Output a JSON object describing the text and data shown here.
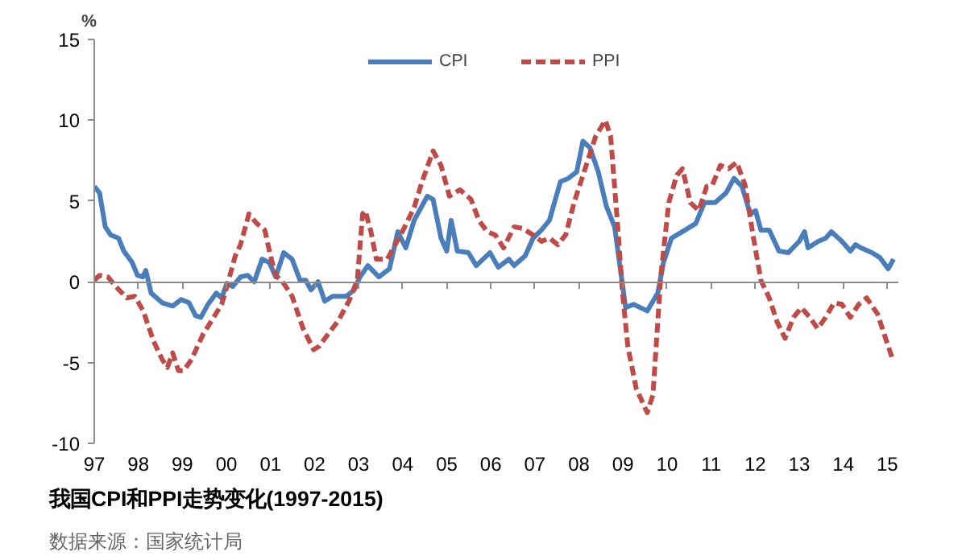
{
  "chart_data": {
    "type": "line",
    "title": "我国CPI和PPI走势变化(1997-2015)",
    "ylabel": "%",
    "annotations": [
      "数据来源：国家统计局"
    ],
    "xlim": [
      1997,
      2015.25
    ],
    "xticks": [
      {
        "value": 1997,
        "label": "97"
      },
      {
        "value": 1998,
        "label": "98"
      },
      {
        "value": 1999,
        "label": "99"
      },
      {
        "value": 2000,
        "label": "00"
      },
      {
        "value": 2001,
        "label": "01"
      },
      {
        "value": 2002,
        "label": "02"
      },
      {
        "value": 2003,
        "label": "03"
      },
      {
        "value": 2004,
        "label": "04"
      },
      {
        "value": 2005,
        "label": "05"
      },
      {
        "value": 2006,
        "label": "06"
      },
      {
        "value": 2007,
        "label": "07"
      },
      {
        "value": 2008,
        "label": "08"
      },
      {
        "value": 2009,
        "label": "09"
      },
      {
        "value": 2010,
        "label": "10"
      },
      {
        "value": 2011,
        "label": "11"
      },
      {
        "value": 2012,
        "label": "12"
      },
      {
        "value": 2013,
        "label": "13"
      },
      {
        "value": 2014,
        "label": "14"
      },
      {
        "value": 2015,
        "label": "15"
      }
    ],
    "ylim": [
      -10,
      15
    ],
    "yticks": [
      -10,
      -5,
      0,
      5,
      10,
      15
    ],
    "legend": "top",
    "marker": "none",
    "series": [
      {
        "name": "CPI",
        "color": "#4a7ebb",
        "line_style": "solid",
        "x": [
          1997.0,
          1997.12,
          1997.25,
          1997.37,
          1997.55,
          1997.67,
          1997.86,
          1997.98,
          1998.1,
          1998.17,
          1998.29,
          1998.54,
          1998.78,
          1998.97,
          1999.15,
          1999.3,
          1999.42,
          1999.58,
          1999.77,
          1999.89,
          2000.01,
          2000.14,
          2000.32,
          2000.48,
          2000.63,
          2000.81,
          2000.97,
          2001.12,
          2001.3,
          2001.49,
          2001.67,
          2001.8,
          2001.92,
          2002.08,
          2002.23,
          2002.41,
          2002.72,
          2002.9,
          2003.03,
          2003.21,
          2003.46,
          2003.7,
          2003.89,
          2004.07,
          2004.26,
          2004.56,
          2004.69,
          2004.87,
          2005.0,
          2005.1,
          2005.24,
          2005.49,
          2005.67,
          2005.98,
          2006.17,
          2006.41,
          2006.53,
          2006.78,
          2006.96,
          2007.15,
          2007.33,
          2007.58,
          2007.76,
          2007.95,
          2008.09,
          2008.25,
          2008.44,
          2008.62,
          2008.81,
          2008.93,
          2009.06,
          2009.24,
          2009.55,
          2009.79,
          2009.92,
          2010.1,
          2010.35,
          2010.65,
          2010.85,
          2011.09,
          2011.34,
          2011.52,
          2011.7,
          2011.89,
          2012.01,
          2012.13,
          2012.32,
          2012.54,
          2012.75,
          2013.0,
          2013.12,
          2013.2,
          2013.43,
          2013.6,
          2013.73,
          2013.97,
          2014.16,
          2014.28,
          2014.4,
          2014.65,
          2014.83,
          2015.02,
          2015.14
        ],
        "values": [
          5.9,
          5.5,
          3.4,
          2.9,
          2.7,
          1.9,
          1.2,
          0.4,
          0.3,
          0.7,
          -0.7,
          -1.3,
          -1.5,
          -1.1,
          -1.3,
          -2.1,
          -2.2,
          -1.4,
          -0.7,
          -1.0,
          -0.1,
          -0.3,
          0.3,
          0.4,
          0.0,
          1.4,
          1.2,
          0.3,
          1.8,
          1.4,
          0.1,
          0.1,
          -0.5,
          0.0,
          -1.2,
          -0.9,
          -0.9,
          -0.5,
          0.3,
          1.0,
          0.3,
          0.8,
          3.1,
          2.1,
          3.8,
          5.3,
          5.1,
          2.7,
          1.9,
          3.8,
          1.9,
          1.8,
          1.0,
          1.8,
          0.9,
          1.4,
          1.0,
          1.6,
          2.7,
          3.2,
          3.8,
          6.2,
          6.4,
          6.8,
          8.7,
          8.3,
          6.8,
          4.7,
          3.4,
          1.0,
          -1.6,
          -1.4,
          -1.8,
          -0.7,
          1.2,
          2.7,
          3.1,
          3.6,
          4.9,
          4.9,
          5.5,
          6.4,
          5.9,
          4.2,
          4.4,
          3.2,
          3.2,
          1.9,
          1.8,
          2.5,
          3.1,
          2.1,
          2.5,
          2.7,
          3.1,
          2.5,
          1.9,
          2.3,
          2.1,
          1.8,
          1.5,
          0.8,
          1.4
        ]
      },
      {
        "name": "PPI",
        "color": "#be4b48",
        "line_style": "dashed",
        "x": [
          1997.0,
          1997.12,
          1997.31,
          1997.49,
          1997.74,
          1997.92,
          1998.11,
          1998.35,
          1998.54,
          1998.66,
          1998.78,
          1998.91,
          1999.03,
          1999.21,
          1999.46,
          1999.71,
          1999.89,
          2000.01,
          2000.2,
          2000.32,
          2000.51,
          2000.69,
          2000.87,
          2001.0,
          2001.12,
          2001.3,
          2001.49,
          2001.74,
          2001.98,
          2002.1,
          2002.29,
          2002.54,
          2002.78,
          2002.97,
          2003.09,
          2003.15,
          2003.28,
          2003.4,
          2003.65,
          2003.83,
          2004.01,
          2004.26,
          2004.44,
          2004.69,
          2004.87,
          2005.06,
          2005.3,
          2005.55,
          2005.73,
          2005.92,
          2006.1,
          2006.29,
          2006.53,
          2006.72,
          2006.96,
          2007.15,
          2007.33,
          2007.52,
          2007.7,
          2007.89,
          2008.14,
          2008.38,
          2008.6,
          2008.72,
          2008.87,
          2008.99,
          2009.11,
          2009.3,
          2009.55,
          2009.68,
          2009.86,
          2010.04,
          2010.22,
          2010.35,
          2010.53,
          2010.72,
          2010.9,
          2011.03,
          2011.21,
          2011.4,
          2011.58,
          2011.77,
          2011.95,
          2012.13,
          2012.32,
          2012.5,
          2012.68,
          2012.87,
          2013.05,
          2013.24,
          2013.42,
          2013.6,
          2013.79,
          2013.97,
          2014.16,
          2014.35,
          2014.53,
          2014.78,
          2014.96,
          2015.12
        ],
        "values": [
          0.1,
          0.4,
          0.3,
          -0.3,
          -1.0,
          -0.9,
          -1.8,
          -3.7,
          -4.8,
          -5.3,
          -4.4,
          -5.5,
          -5.5,
          -4.8,
          -3.3,
          -2.2,
          -1.4,
          -0.3,
          1.6,
          2.3,
          4.2,
          3.6,
          3.2,
          1.6,
          0.4,
          -0.1,
          -0.9,
          -2.9,
          -4.2,
          -4.0,
          -3.3,
          -2.4,
          -1.2,
          0.1,
          4.2,
          4.4,
          3.1,
          1.4,
          1.4,
          2.3,
          3.2,
          4.6,
          6.2,
          8.1,
          7.2,
          5.3,
          5.7,
          5.1,
          3.8,
          3.1,
          2.9,
          2.1,
          3.4,
          3.3,
          2.9,
          2.5,
          2.7,
          2.3,
          2.9,
          4.9,
          7.0,
          9.0,
          10.0,
          9.0,
          3.8,
          -0.7,
          -4.0,
          -6.6,
          -8.1,
          -7.0,
          0.4,
          4.9,
          6.6,
          7.0,
          4.9,
          4.4,
          5.9,
          6.0,
          7.2,
          7.0,
          7.4,
          6.0,
          2.9,
          0.1,
          -1.0,
          -2.5,
          -3.5,
          -2.2,
          -1.6,
          -2.2,
          -2.9,
          -2.2,
          -1.3,
          -1.4,
          -2.2,
          -1.4,
          -1.0,
          -2.0,
          -3.5,
          -4.8
        ]
      }
    ]
  }
}
